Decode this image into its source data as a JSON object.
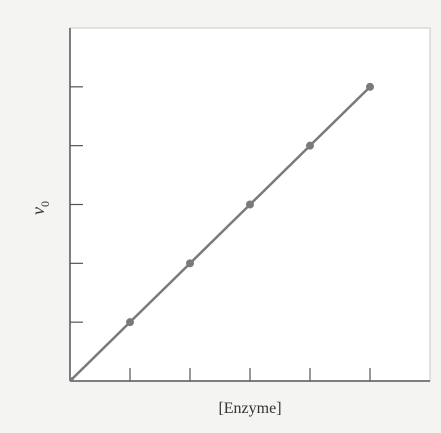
{
  "chart_data": {
    "type": "line",
    "x_label": "[Enzyme]",
    "y_label": {
      "base": "v",
      "subscript": "0"
    },
    "x": [
      0,
      1,
      2,
      3,
      4,
      5
    ],
    "series": [
      {
        "name": "v0",
        "color": "#7a7a7a",
        "values": [
          0,
          1,
          2,
          3,
          4,
          5
        ]
      }
    ],
    "xlim": [
      0,
      6
    ],
    "ylim": [
      0,
      6
    ],
    "xticks": [
      1,
      2,
      3,
      4,
      5
    ],
    "yticks": [
      1,
      2,
      3,
      4,
      5
    ],
    "grid": false
  }
}
